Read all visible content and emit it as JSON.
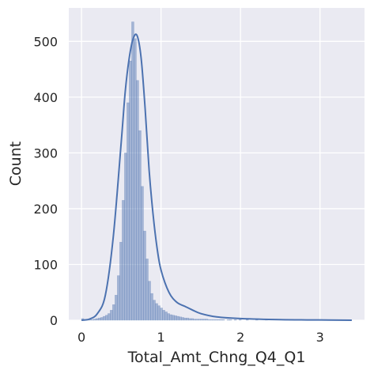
{
  "chart_data": {
    "type": "histogram",
    "title": "",
    "xlabel": "Total_Amt_Chng_Q4_Q1",
    "ylabel": "Count",
    "xlim": [
      -0.16,
      3.56
    ],
    "ylim": [
      0,
      560
    ],
    "xticks": [
      0,
      1,
      2,
      3
    ],
    "yticks": [
      0,
      100,
      200,
      300,
      400,
      500
    ],
    "grid": true,
    "kde": true,
    "colors": {
      "background": "#eaeaf2",
      "grid": "#ffffff",
      "bar_fill": "#4c72b0",
      "bar_edge": "#4c72b0",
      "kde_line": "#4c72b0"
    },
    "bins": {
      "start": 0.0,
      "width": 0.03,
      "counts": [
        3,
        1,
        1,
        1,
        1,
        2,
        3,
        4,
        5,
        7,
        9,
        12,
        18,
        28,
        45,
        80,
        140,
        215,
        300,
        390,
        465,
        535,
        505,
        430,
        340,
        240,
        160,
        110,
        70,
        48,
        36,
        30,
        26,
        22,
        18,
        15,
        12,
        10,
        9,
        8,
        7,
        6,
        5,
        4,
        4,
        3,
        3,
        2,
        2,
        2,
        2,
        2,
        2,
        1,
        1,
        1,
        1,
        1,
        1,
        1,
        0,
        1,
        1,
        0,
        1,
        0,
        1,
        0,
        0,
        1,
        0,
        0,
        0,
        1,
        0,
        0,
        0,
        1,
        0,
        0,
        0,
        0,
        0,
        0,
        0,
        0,
        0,
        0,
        0,
        0,
        0,
        0,
        0,
        0,
        0,
        0,
        0,
        0,
        0,
        0,
        0,
        0,
        0,
        0,
        0,
        0,
        0,
        0,
        0,
        0,
        0,
        0,
        1
      ]
    },
    "kde_curve": {
      "x": [
        0,
        0.1,
        0.2,
        0.3,
        0.4,
        0.5,
        0.55,
        0.6,
        0.65,
        0.7,
        0.75,
        0.8,
        0.85,
        0.9,
        0.95,
        1.0,
        1.1,
        1.2,
        1.3,
        1.4,
        1.5,
        1.7,
        2.0,
        2.5,
        3.0,
        3.4
      ],
      "y": [
        0,
        2,
        12,
        45,
        150,
        320,
        410,
        470,
        505,
        510,
        470,
        380,
        270,
        190,
        130,
        90,
        50,
        32,
        25,
        18,
        12,
        6,
        3,
        1,
        0.5,
        0
      ]
    }
  }
}
